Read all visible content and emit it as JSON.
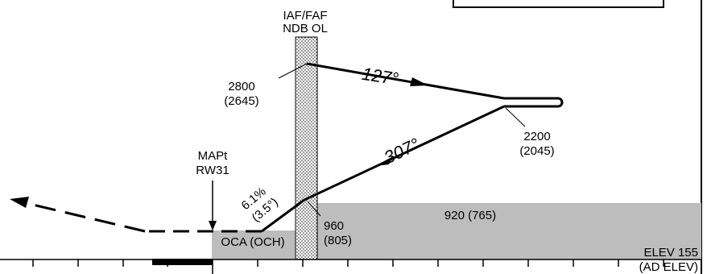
{
  "fix": {
    "name_line1": "IAF/FAF",
    "name_line2": "NDB OL",
    "alt": "2800",
    "alt_height": "(2645)"
  },
  "outbound": {
    "course": "127°"
  },
  "inbound": {
    "course": "307°"
  },
  "turn": {
    "alt": "2200",
    "alt_height": "(2045)"
  },
  "descent": {
    "gradient": "6.1%",
    "angle": "(3.5°)"
  },
  "map": {
    "line1": "MAPt",
    "line2": "RW31"
  },
  "step": {
    "alt": "960",
    "alt_height": "(805)"
  },
  "msa_block": {
    "label": "920 (765)"
  },
  "oca_block": {
    "label": "OCA (OCH)"
  },
  "elevation": {
    "label": "ELEV 155",
    "sub": "(AD ELEV)"
  },
  "colors": {
    "shade": "#bdbdbd",
    "line": "#000000"
  }
}
